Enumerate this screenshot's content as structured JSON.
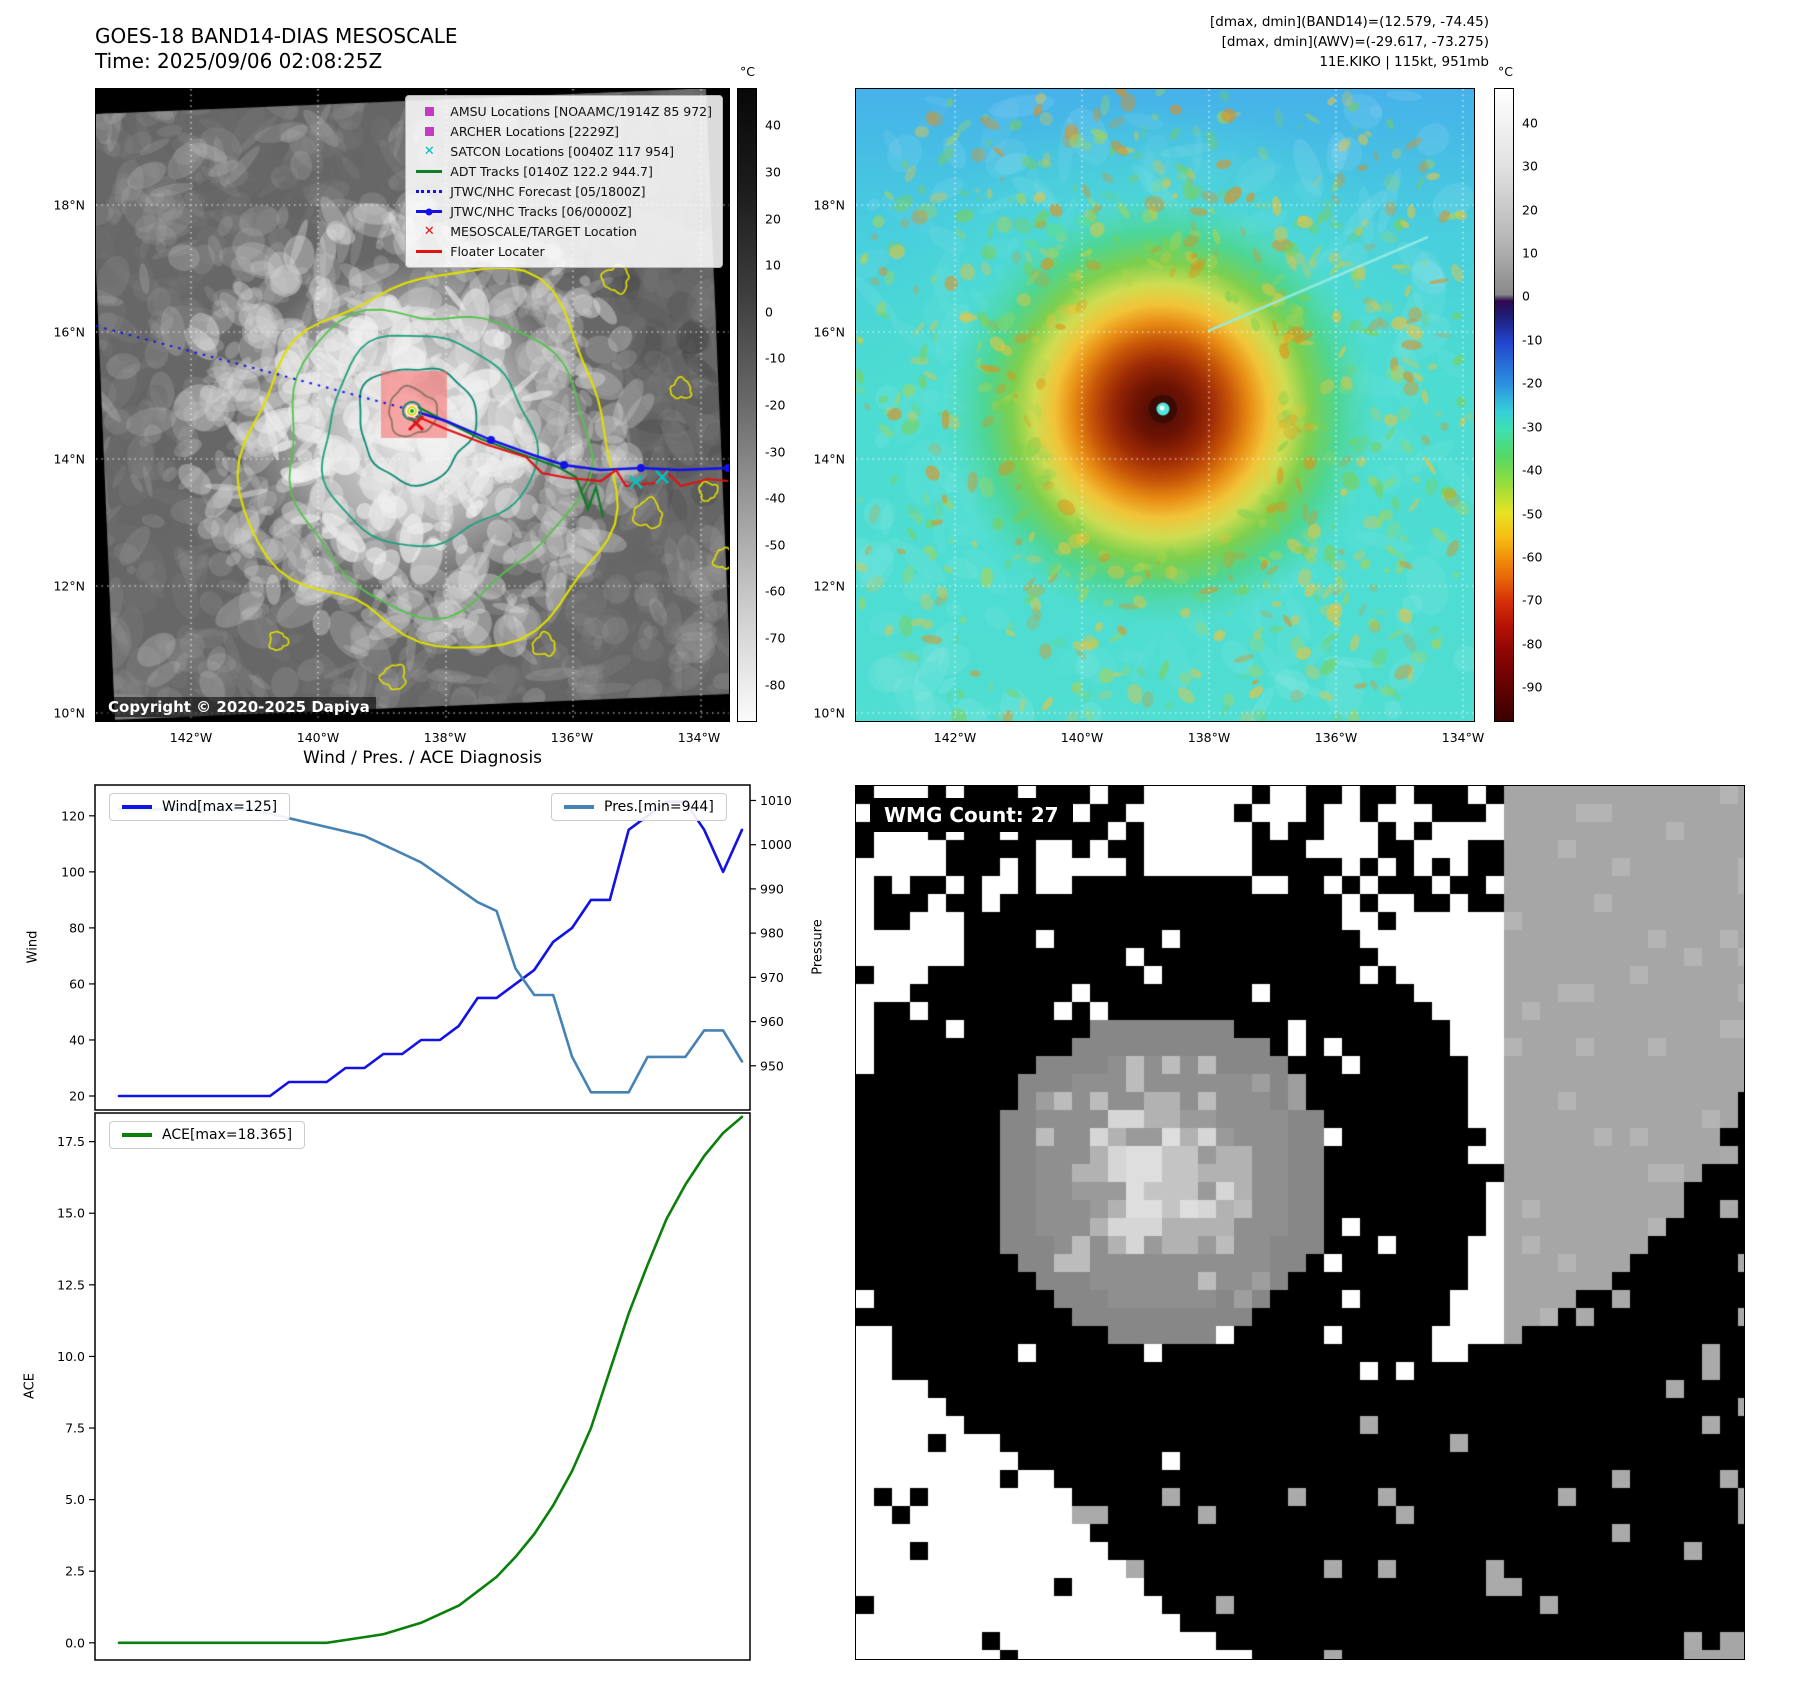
{
  "band14": {
    "title": "GOES-18 BAND14-DIAS MESOSCALE",
    "subtitle": "Time: 2025/09/06 02:08:25Z",
    "copyright": "Copyright © 2020-2025 Dapiya",
    "colorbar_unit": "°C",
    "colorbar_ticks": [
      "40",
      "30",
      "20",
      "10",
      "0",
      "-10",
      "-20",
      "-30",
      "-40",
      "-50",
      "-60",
      "-70",
      "-80"
    ],
    "lat_ticks": [
      "18°N",
      "16°N",
      "14°N",
      "12°N",
      "10°N"
    ],
    "lon_ticks": [
      "142°W",
      "140°W",
      "138°W",
      "136°W",
      "134°W"
    ],
    "legend": [
      {
        "label": "AMSU Locations [NOAAMC/1914Z 85 972]",
        "marker": "square",
        "color": "#c23bc2"
      },
      {
        "label": "ARCHER Locations [2229Z]",
        "marker": "square",
        "color": "#c23bc2"
      },
      {
        "label": "SATCON Locations [0040Z 117 954]",
        "marker": "x",
        "color": "#00bcbc"
      },
      {
        "label": "ADT Tracks [0140Z 122.2 944.7]",
        "marker": "line",
        "color": "#0e7d28"
      },
      {
        "label": "JTWC/NHC Forecast [05/1800Z]",
        "marker": "dotted-line",
        "color": "#1212e6"
      },
      {
        "label": "JTWC/NHC Tracks [06/0000Z]",
        "marker": "line-marker",
        "color": "#1212e6"
      },
      {
        "label": "MESOSCALE/TARGET Location",
        "marker": "x",
        "color": "#e01212"
      },
      {
        "label": "Floater Locater",
        "marker": "line",
        "color": "#e01212"
      }
    ]
  },
  "awv": {
    "header_lines": [
      "[dmax, dmin](BAND14)=(12.579, -74.45)",
      "[dmax, dmin](AWV)=(-29.617, -73.275)",
      "11E.KIKO | 115kt, 951mb"
    ],
    "colorbar_unit": "°C",
    "colorbar_ticks": [
      "40",
      "30",
      "20",
      "10",
      "0",
      "-10",
      "-20",
      "-30",
      "-40",
      "-50",
      "-60",
      "-70",
      "-80",
      "-90"
    ],
    "lat_ticks": [
      "18°N",
      "16°N",
      "14°N",
      "12°N",
      "10°N"
    ],
    "lon_ticks": [
      "142°W",
      "140°W",
      "138°W",
      "136°W",
      "134°W"
    ]
  },
  "wmg": {
    "label": "WMG Count: 27"
  },
  "chart_data": [
    {
      "type": "line",
      "title": "Wind / Pres. / ACE Diagnosis",
      "x_range": [
        0,
        33
      ],
      "grid": false,
      "series": [
        {
          "name": "Wind[max=125]",
          "axis": "left",
          "color": "#1212e6",
          "values": [
            20,
            20,
            20,
            20,
            20,
            20,
            20,
            20,
            20,
            25,
            25,
            25,
            30,
            30,
            35,
            35,
            40,
            40,
            45,
            55,
            55,
            60,
            65,
            75,
            80,
            90,
            90,
            115,
            120,
            125,
            125,
            115,
            100,
            115
          ]
        },
        {
          "name": "Pres.[min=944]",
          "axis": "right",
          "color": "#4682b4",
          "values": [
            1008,
            1008,
            1008,
            1008,
            1008,
            1008,
            1008,
            1008,
            1007,
            1006,
            1005,
            1004,
            1003,
            1002,
            1000,
            998,
            996,
            993,
            990,
            987,
            985,
            972,
            966,
            966,
            952,
            944,
            944,
            944,
            952,
            952,
            952,
            958,
            958,
            951
          ]
        }
      ],
      "left_axis": {
        "label": "Wind",
        "ticks": [
          "20",
          "40",
          "60",
          "80",
          "100",
          "120"
        ],
        "tick_values": [
          20,
          40,
          60,
          80,
          100,
          120
        ],
        "range": [
          15,
          131
        ]
      },
      "right_axis": {
        "label": "Pressure",
        "ticks": [
          "950",
          "960",
          "970",
          "980",
          "990",
          "1000",
          "1010"
        ],
        "tick_values": [
          950,
          960,
          970,
          980,
          990,
          1000,
          1010
        ],
        "range": [
          940,
          1013.5
        ]
      }
    },
    {
      "type": "line",
      "title": "",
      "x_range": [
        0,
        33
      ],
      "grid": false,
      "series": [
        {
          "name": "ACE[max=18.365]",
          "axis": "left",
          "color": "#0a800a",
          "values": [
            0,
            0,
            0,
            0,
            0,
            0,
            0,
            0,
            0,
            0,
            0,
            0,
            0.1,
            0.2,
            0.3,
            0.5,
            0.7,
            1.0,
            1.3,
            1.8,
            2.3,
            3.0,
            3.8,
            4.8,
            6.0,
            7.5,
            9.5,
            11.5,
            13.2,
            14.8,
            16.0,
            17.0,
            17.8,
            18.365
          ]
        }
      ],
      "left_axis": {
        "label": "ACE",
        "ticks": [
          "0.0",
          "2.5",
          "5.0",
          "7.5",
          "10.0",
          "12.5",
          "15.0",
          "17.5"
        ],
        "tick_values": [
          0,
          2.5,
          5,
          7.5,
          10,
          12.5,
          15,
          17.5
        ],
        "range": [
          -0.6,
          18.5
        ]
      }
    }
  ]
}
